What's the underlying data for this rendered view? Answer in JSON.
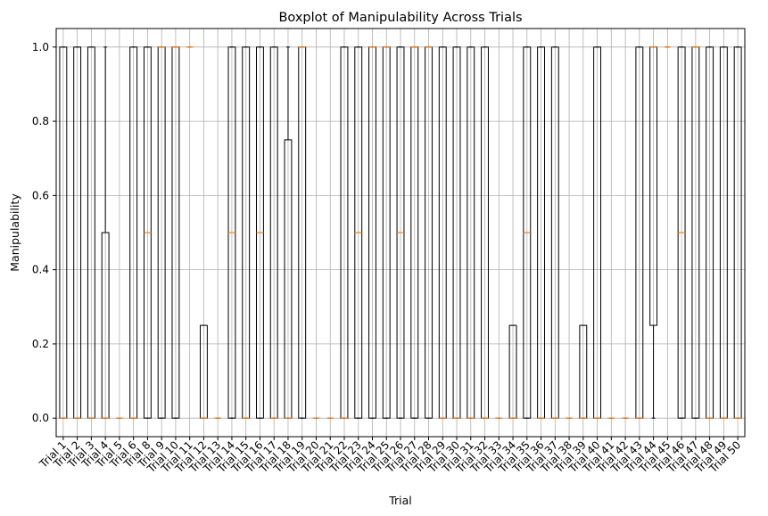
{
  "chart_data": {
    "type": "boxplot",
    "title": "Boxplot of Manipulability Across Trials",
    "xlabel": "Trial",
    "ylabel": "Manipulability",
    "ylim": [
      -0.05,
      1.05
    ],
    "yticks": [
      0.0,
      0.2,
      0.4,
      0.6,
      0.8,
      1.0
    ],
    "ytick_labels": [
      "0.0",
      "0.2",
      "0.4",
      "0.6",
      "0.8",
      "1.0"
    ],
    "grid": true,
    "colors": {
      "box": "#000000",
      "median": "#ff7f0e",
      "grid": "#b0b0b0"
    },
    "categories": [
      "Trial 1",
      "Trial 2",
      "Trial 3",
      "Trial 4",
      "Trial 5",
      "Trial 6",
      "Trial 8",
      "Trial 9",
      "Trial 10",
      "Trial 11",
      "Trial 12",
      "Trial 13",
      "Trial 14",
      "Trial 15",
      "Trial 16",
      "Trial 17",
      "Trial 18",
      "Trial 19",
      "Trial 20",
      "Trial 21",
      "Trial 22",
      "Trial 23",
      "Trial 24",
      "Trial 25",
      "Trial 26",
      "Trial 27",
      "Trial 28",
      "Trial 29",
      "Trial 30",
      "Trial 31",
      "Trial 32",
      "Trial 33",
      "Trial 34",
      "Trial 35",
      "Trial 36",
      "Trial 37",
      "Trial 38",
      "Trial 39",
      "Trial 40",
      "Trial 41",
      "Trial 42",
      "Trial 43",
      "Trial 44",
      "Trial 45",
      "Trial 46",
      "Trial 47",
      "Trial 48",
      "Trial 49",
      "Trial 50"
    ],
    "boxes": [
      {
        "q1": 0,
        "med": 0,
        "q3": 1,
        "wlo": 0,
        "whi": 1
      },
      {
        "q1": 0,
        "med": 0,
        "q3": 1,
        "wlo": 0,
        "whi": 1
      },
      {
        "q1": 0,
        "med": 0,
        "q3": 1,
        "wlo": 0,
        "whi": 1
      },
      {
        "q1": 0,
        "med": 0,
        "q3": 0.5,
        "wlo": 0,
        "whi": 1
      },
      {
        "q1": 0,
        "med": 0,
        "q3": 0,
        "wlo": 0,
        "whi": 0
      },
      {
        "q1": 0,
        "med": 0,
        "q3": 1,
        "wlo": 0,
        "whi": 1
      },
      {
        "q1": 0,
        "med": 0.5,
        "q3": 1,
        "wlo": 0,
        "whi": 1
      },
      {
        "q1": 0,
        "med": 1,
        "q3": 1,
        "wlo": 0,
        "whi": 1
      },
      {
        "q1": 0,
        "med": 1,
        "q3": 1,
        "wlo": 0,
        "whi": 1
      },
      {
        "q1": 1,
        "med": 1,
        "q3": 1,
        "wlo": 1,
        "whi": 1
      },
      {
        "q1": 0,
        "med": 0,
        "q3": 0.25,
        "wlo": 0,
        "whi": 0.25
      },
      {
        "q1": 0,
        "med": 0,
        "q3": 0,
        "wlo": 0,
        "whi": 0
      },
      {
        "q1": 0,
        "med": 0.5,
        "q3": 1,
        "wlo": 0,
        "whi": 1
      },
      {
        "q1": 0,
        "med": 0,
        "q3": 1,
        "wlo": 0,
        "whi": 1
      },
      {
        "q1": 0,
        "med": 0.5,
        "q3": 1,
        "wlo": 0,
        "whi": 1
      },
      {
        "q1": 0,
        "med": 0,
        "q3": 1,
        "wlo": 0,
        "whi": 1
      },
      {
        "q1": 0,
        "med": 0,
        "q3": 0.75,
        "wlo": 0,
        "whi": 1
      },
      {
        "q1": 0,
        "med": 1,
        "q3": 1,
        "wlo": 0,
        "whi": 1
      },
      {
        "q1": 0,
        "med": 0,
        "q3": 0,
        "wlo": 0,
        "whi": 0
      },
      {
        "q1": 0,
        "med": 0,
        "q3": 0,
        "wlo": 0,
        "whi": 0
      },
      {
        "q1": 0,
        "med": 0,
        "q3": 1,
        "wlo": 0,
        "whi": 1
      },
      {
        "q1": 0,
        "med": 0.5,
        "q3": 1,
        "wlo": 0,
        "whi": 1
      },
      {
        "q1": 0,
        "med": 1,
        "q3": 1,
        "wlo": 0,
        "whi": 1
      },
      {
        "q1": 0,
        "med": 1,
        "q3": 1,
        "wlo": 0,
        "whi": 1
      },
      {
        "q1": 0,
        "med": 0.5,
        "q3": 1,
        "wlo": 0,
        "whi": 1
      },
      {
        "q1": 0,
        "med": 1,
        "q3": 1,
        "wlo": 0,
        "whi": 1
      },
      {
        "q1": 0,
        "med": 1,
        "q3": 1,
        "wlo": 0,
        "whi": 1
      },
      {
        "q1": 0,
        "med": 0,
        "q3": 1,
        "wlo": 0,
        "whi": 1
      },
      {
        "q1": 0,
        "med": 0,
        "q3": 1,
        "wlo": 0,
        "whi": 1
      },
      {
        "q1": 0,
        "med": 0,
        "q3": 1,
        "wlo": 0,
        "whi": 1
      },
      {
        "q1": 0,
        "med": 0,
        "q3": 1,
        "wlo": 0,
        "whi": 1
      },
      {
        "q1": 0,
        "med": 0,
        "q3": 0,
        "wlo": 0,
        "whi": 0
      },
      {
        "q1": 0,
        "med": 0,
        "q3": 0.25,
        "wlo": 0,
        "whi": 0.25
      },
      {
        "q1": 0,
        "med": 0.5,
        "q3": 1,
        "wlo": 0,
        "whi": 1
      },
      {
        "q1": 0,
        "med": 0,
        "q3": 1,
        "wlo": 0,
        "whi": 1
      },
      {
        "q1": 0,
        "med": 0,
        "q3": 1,
        "wlo": 0,
        "whi": 1
      },
      {
        "q1": 0,
        "med": 0,
        "q3": 0,
        "wlo": 0,
        "whi": 0
      },
      {
        "q1": 0,
        "med": 0,
        "q3": 0.25,
        "wlo": 0,
        "whi": 0.25
      },
      {
        "q1": 0,
        "med": 0,
        "q3": 1,
        "wlo": 0,
        "whi": 1
      },
      {
        "q1": 0,
        "med": 0,
        "q3": 0,
        "wlo": 0,
        "whi": 0
      },
      {
        "q1": 0,
        "med": 0,
        "q3": 0,
        "wlo": 0,
        "whi": 0
      },
      {
        "q1": 0,
        "med": 0,
        "q3": 1,
        "wlo": 0,
        "whi": 1
      },
      {
        "q1": 0.25,
        "med": 1,
        "q3": 1,
        "wlo": 0,
        "whi": 1
      },
      {
        "q1": 1,
        "med": 1,
        "q3": 1,
        "wlo": 1,
        "whi": 1
      },
      {
        "q1": 0,
        "med": 0.5,
        "q3": 1,
        "wlo": 0,
        "whi": 1
      },
      {
        "q1": 0,
        "med": 1,
        "q3": 1,
        "wlo": 0,
        "whi": 1
      },
      {
        "q1": 0,
        "med": 0,
        "q3": 1,
        "wlo": 0,
        "whi": 1
      },
      {
        "q1": 0,
        "med": 0,
        "q3": 1,
        "wlo": 0,
        "whi": 1
      },
      {
        "q1": 0,
        "med": 0,
        "q3": 1,
        "wlo": 0,
        "whi": 1
      }
    ]
  }
}
